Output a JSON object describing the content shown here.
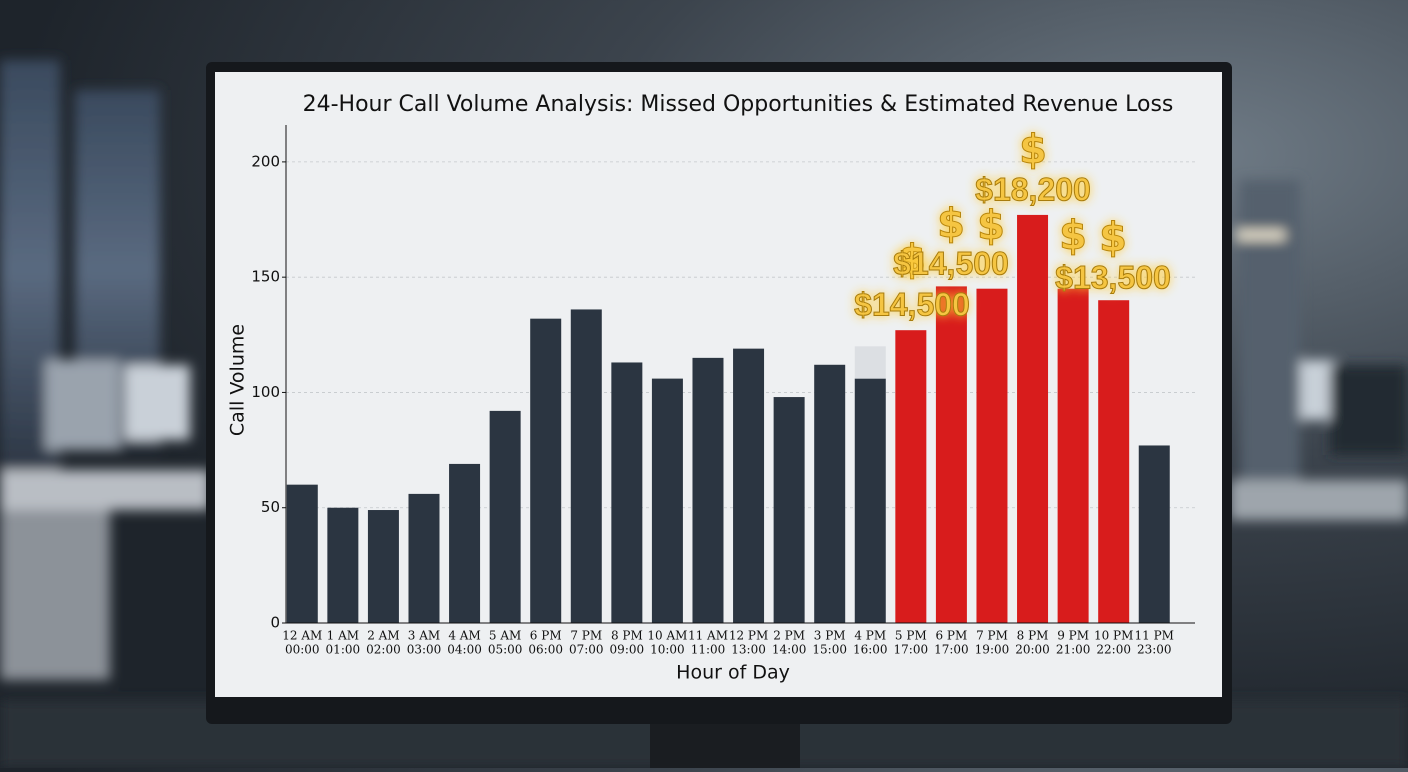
{
  "chart_data": {
    "type": "bar",
    "title": "24-Hour Call Volume Analysis: Missed Opportunities & Estimated Revenue Loss",
    "x_label": "Hour of Day",
    "y_label": "Call Volume",
    "categories": [
      [
        "12 AM",
        "00:00"
      ],
      [
        "1 AM",
        "01:00"
      ],
      [
        "2 AM",
        "02:00"
      ],
      [
        "3 AM",
        "03:00"
      ],
      [
        "4 AM",
        "04:00"
      ],
      [
        "5 AM",
        "05:00"
      ],
      [
        "6 PM",
        "06:00"
      ],
      [
        "7 PM",
        "07:00"
      ],
      [
        "8 PM",
        "09:00"
      ],
      [
        "10 AM",
        "10:00"
      ],
      [
        "11 AM",
        "11:00"
      ],
      [
        "12 PM",
        "13:00"
      ],
      [
        "2 PM",
        "14:00"
      ],
      [
        "3 PM",
        "15:00"
      ],
      [
        "4 PM",
        "16:00"
      ],
      [
        "5 PM",
        "17:00"
      ],
      [
        "6 PM",
        "17:00"
      ],
      [
        "7 PM",
        "19:00"
      ],
      [
        "8 PM",
        "20:00"
      ],
      [
        "9 PM",
        "21:00"
      ],
      [
        "10 PM",
        "22:00"
      ],
      [
        "11 PM",
        "23:00"
      ]
    ],
    "series": [
      {
        "values": [
          60,
          50,
          49,
          56,
          69,
          92,
          132,
          136,
          113,
          106,
          115,
          119,
          98,
          112,
          106,
          127,
          146,
          145,
          177,
          145,
          140,
          77
        ],
        "colors": [
          "#2b3541",
          "#2b3541",
          "#2b3541",
          "#2b3541",
          "#2b3541",
          "#2b3541",
          "#2b3541",
          "#2b3541",
          "#2b3541",
          "#2b3541",
          "#2b3541",
          "#2b3541",
          "#2b3541",
          "#2b3541",
          "#2b3541",
          "#d81c1c",
          "#d81c1c",
          "#d81c1c",
          "#d81c1c",
          "#d81c1c",
          "#d81c1c",
          "#2b3541"
        ]
      },
      {
        "values": [
          null,
          null,
          null,
          null,
          null,
          null,
          null,
          null,
          null,
          null,
          null,
          null,
          null,
          null,
          14,
          null,
          null,
          null,
          null,
          null,
          null,
          null
        ],
        "color": "#dcdfe3"
      }
    ],
    "ylim": [
      0,
      216
    ],
    "yticks": [
      0,
      50,
      100,
      150,
      200
    ],
    "grid": true,
    "annotations": [
      "$14,500",
      "$14,500",
      "$18,200",
      "$13,500"
    ],
    "symbols": [
      "$",
      "$",
      "$",
      "$",
      "$",
      "$"
    ],
    "annotation_color": "#f5c542"
  }
}
